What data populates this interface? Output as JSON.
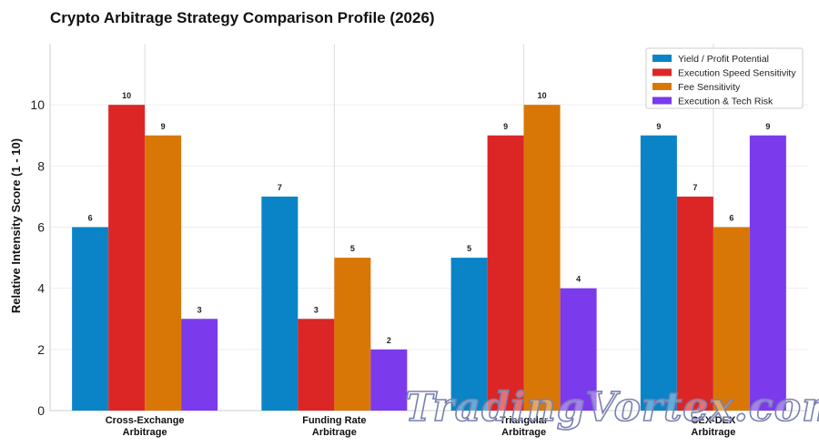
{
  "chart_data": {
    "type": "bar",
    "title": "Crypto Arbitrage Strategy Comparison Profile (2026)",
    "ylabel": "Relative Intensity Score (1 - 10)",
    "xlabel": "",
    "ylim": [
      0,
      12
    ],
    "yticks": [
      0,
      2,
      4,
      6,
      8,
      10
    ],
    "grid": true,
    "legend_position": "top-right",
    "categories": [
      [
        "Cross-Exchange",
        "Arbitrage"
      ],
      [
        "Funding Rate",
        "Arbitrage"
      ],
      [
        "Triangular",
        "Arbitrage"
      ],
      [
        "CEX-DEX",
        "Arbitrage"
      ]
    ],
    "series": [
      {
        "name": "Yield / Profit Potential",
        "color": "#0a84c6",
        "values": [
          6,
          7,
          5,
          9
        ]
      },
      {
        "name": "Execution Speed Sensitivity",
        "color": "#dc2626",
        "values": [
          10,
          3,
          9,
          7
        ]
      },
      {
        "name": "Fee Sensitivity",
        "color": "#d97706",
        "values": [
          9,
          5,
          10,
          6
        ]
      },
      {
        "name": "Execution & Tech Risk",
        "color": "#7c3aed",
        "values": [
          3,
          2,
          4,
          9
        ]
      }
    ]
  },
  "watermark": "TradingVortex.com"
}
